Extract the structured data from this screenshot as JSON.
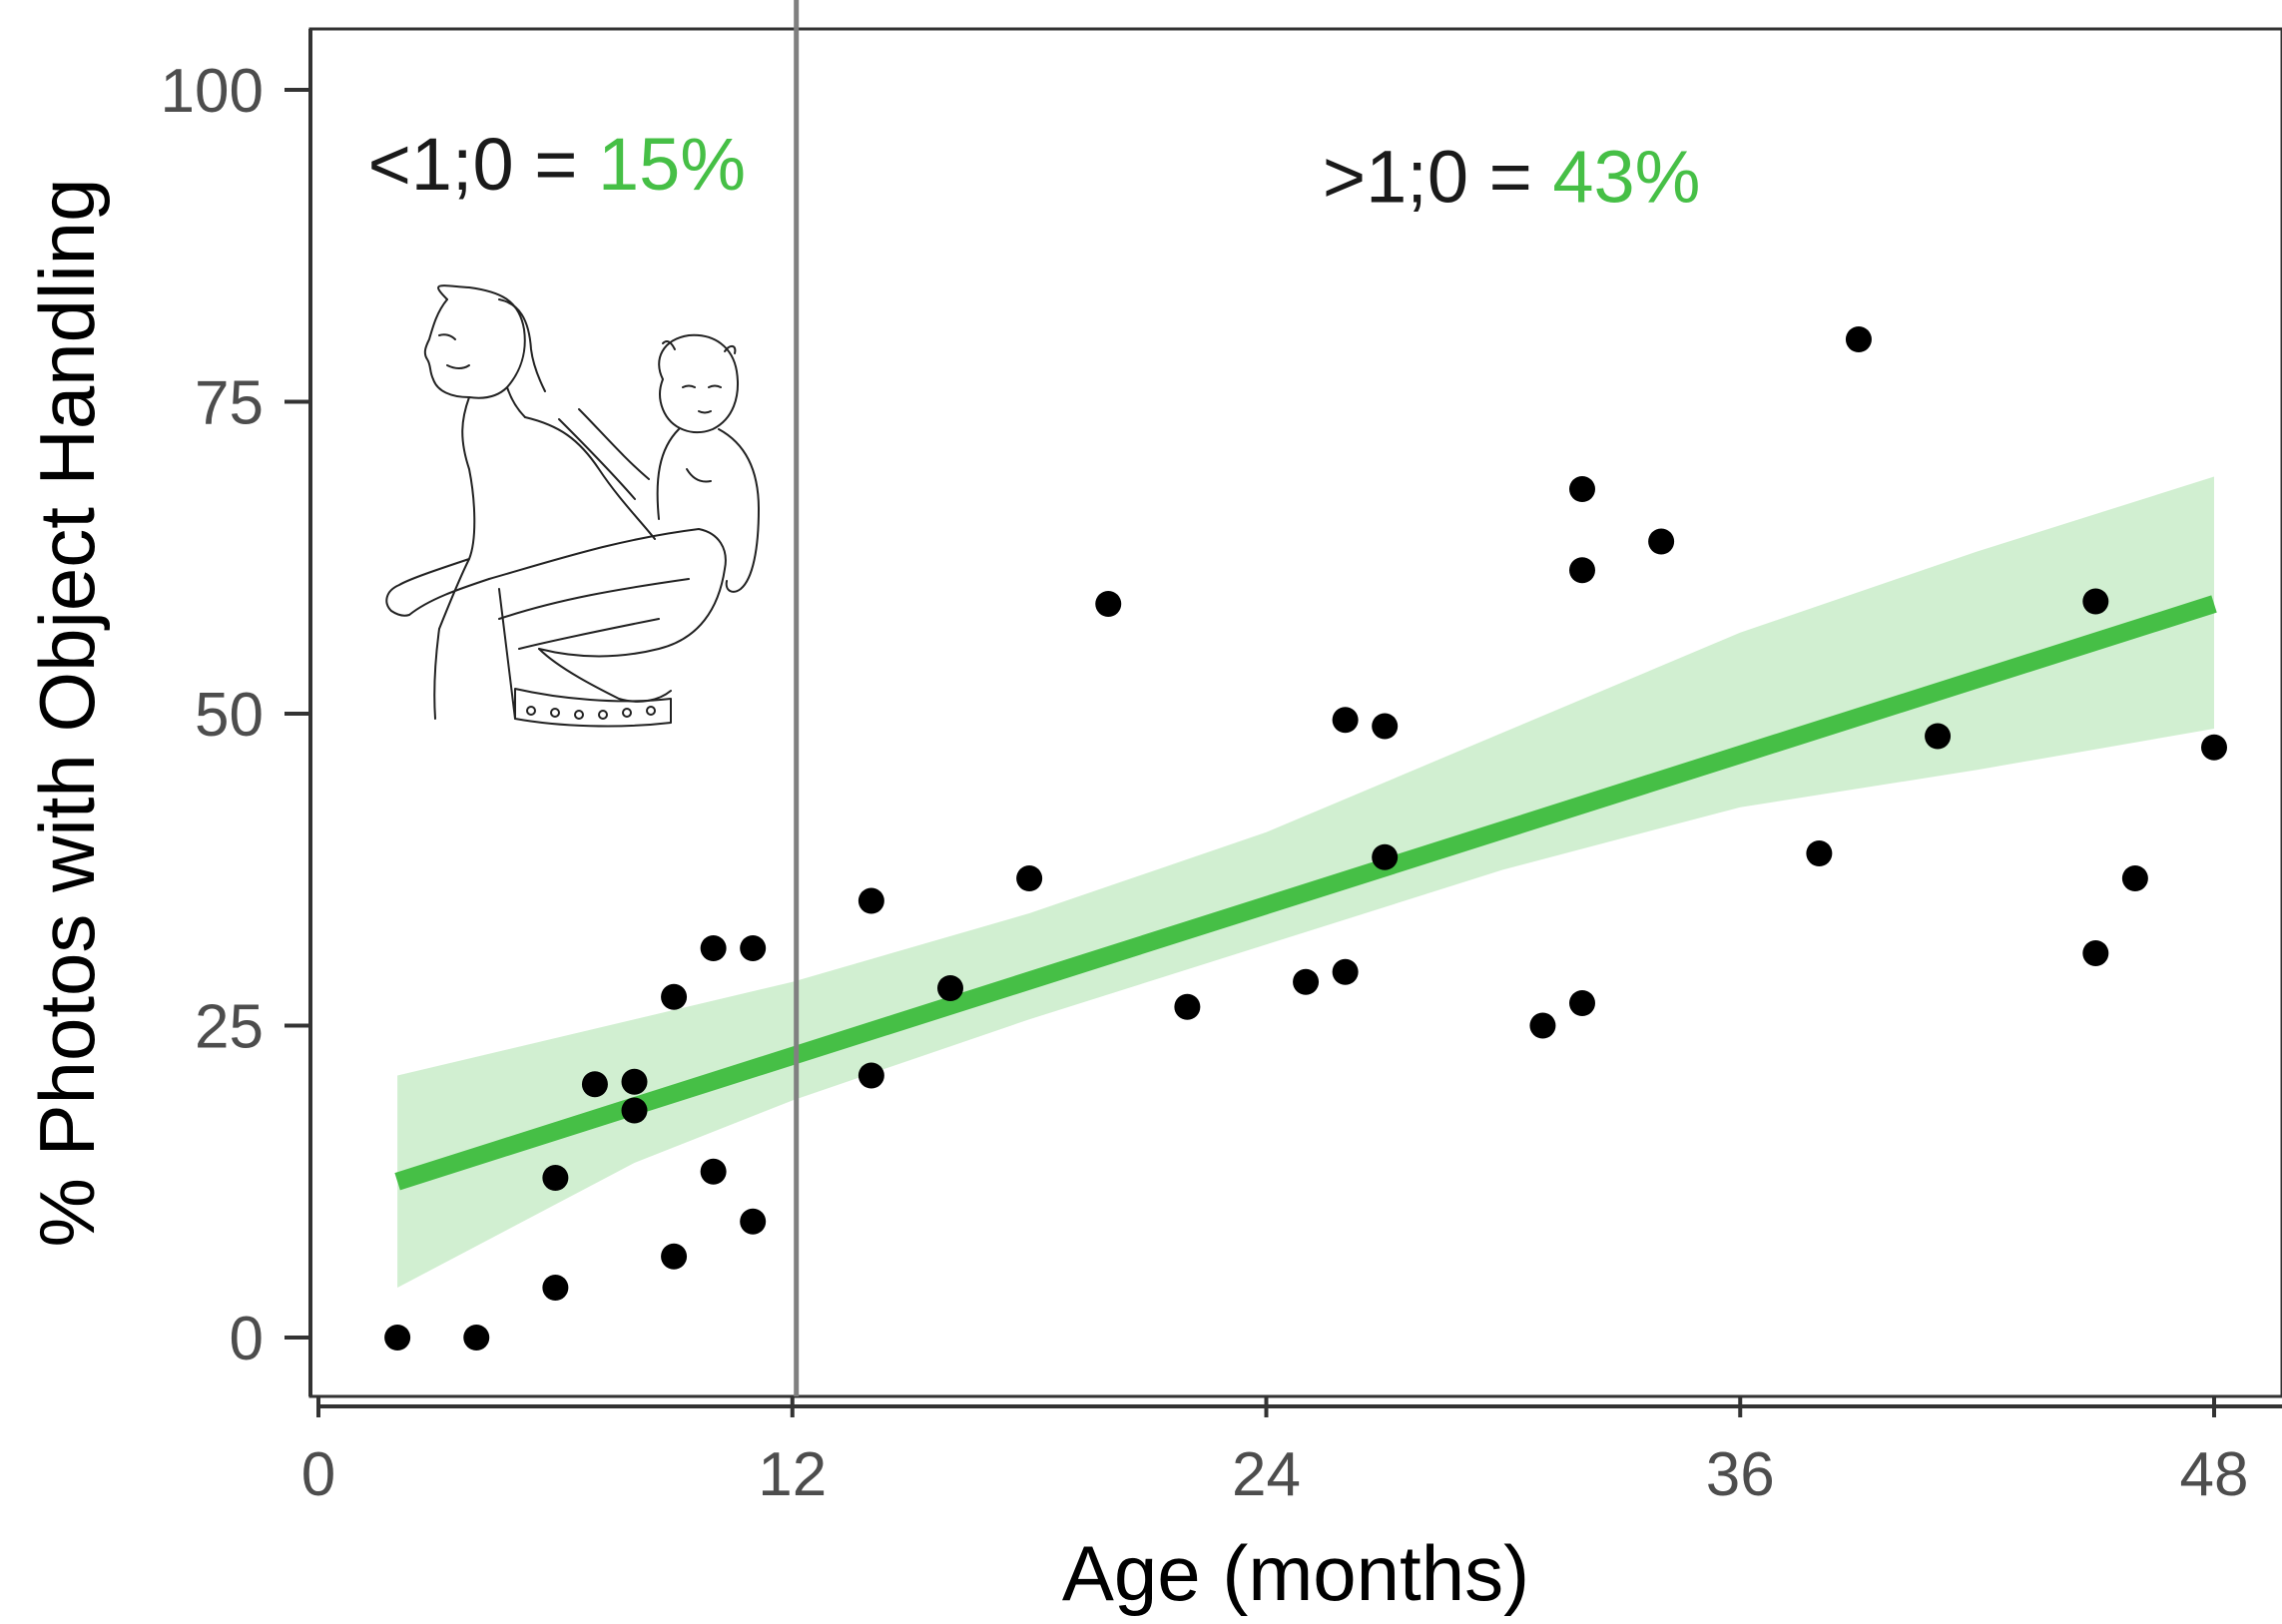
{
  "chart_data": {
    "type": "scatter",
    "xlabel": "Age (months)",
    "ylabel": "% Photos with Object Handling",
    "xlim": [
      0,
      48.5
    ],
    "ylim": [
      -4,
      105
    ],
    "x_ticks": [
      0,
      12,
      24,
      36,
      48
    ],
    "y_ticks": [
      0,
      25,
      50,
      75,
      100
    ],
    "x_tick_labels": [
      "0",
      "12",
      "24",
      "36",
      "48"
    ],
    "y_tick_labels": [
      "0",
      "25",
      "50",
      "75",
      "100"
    ],
    "grid": false,
    "legend": "none",
    "vertical_reference_line": {
      "x": 12.1,
      "color": "#808080"
    },
    "points": [
      {
        "x": 2,
        "y": 0
      },
      {
        "x": 4,
        "y": 0
      },
      {
        "x": 6,
        "y": 4
      },
      {
        "x": 6,
        "y": 12.8
      },
      {
        "x": 7,
        "y": 20.3
      },
      {
        "x": 8,
        "y": 18.2
      },
      {
        "x": 8,
        "y": 20.5
      },
      {
        "x": 9,
        "y": 6.5
      },
      {
        "x": 9,
        "y": 27.3
      },
      {
        "x": 10,
        "y": 13.3
      },
      {
        "x": 10,
        "y": 31.2
      },
      {
        "x": 11,
        "y": 9.3
      },
      {
        "x": 11,
        "y": 31.2
      },
      {
        "x": 14,
        "y": 21
      },
      {
        "x": 14,
        "y": 35
      },
      {
        "x": 16,
        "y": 28
      },
      {
        "x": 18,
        "y": 36.8
      },
      {
        "x": 20,
        "y": 58.8
      },
      {
        "x": 22,
        "y": 26.5
      },
      {
        "x": 25,
        "y": 28.5
      },
      {
        "x": 26,
        "y": 29.3
      },
      {
        "x": 26,
        "y": 49.5
      },
      {
        "x": 27,
        "y": 38.5
      },
      {
        "x": 27,
        "y": 49
      },
      {
        "x": 31,
        "y": 25
      },
      {
        "x": 32,
        "y": 26.8
      },
      {
        "x": 32,
        "y": 61.5
      },
      {
        "x": 32,
        "y": 68
      },
      {
        "x": 34,
        "y": 63.8
      },
      {
        "x": 38,
        "y": 38.8
      },
      {
        "x": 39,
        "y": 80
      },
      {
        "x": 41,
        "y": 48.2
      },
      {
        "x": 45,
        "y": 30.8
      },
      {
        "x": 45,
        "y": 59
      },
      {
        "x": 46,
        "y": 36.8
      },
      {
        "x": 48,
        "y": 47.3
      }
    ],
    "trend_line": {
      "x": [
        2,
        48
      ],
      "y": [
        12.5,
        58.8
      ],
      "color": "#46bf46"
    },
    "confidence_band": {
      "color": "#46bf46",
      "x": [
        2,
        8,
        12,
        18,
        24,
        30,
        36,
        42,
        48
      ],
      "upper": [
        21,
        25.5,
        28.5,
        34,
        40.5,
        48.5,
        56.5,
        63,
        69
      ],
      "lower": [
        4,
        14,
        19,
        25.5,
        31.5,
        37.5,
        42.5,
        45.5,
        48.8
      ]
    },
    "annotations": [
      {
        "id": "under_one",
        "label": "<1;0 = ",
        "value": "15%",
        "x": 1,
        "y": 94
      },
      {
        "id": "over_one",
        "label": ">1;0 = ",
        "value": "43%",
        "x": 25.3,
        "y": 93
      }
    ],
    "inset_image": "line-drawing-mother-carrying-infant-in-back-sling"
  }
}
